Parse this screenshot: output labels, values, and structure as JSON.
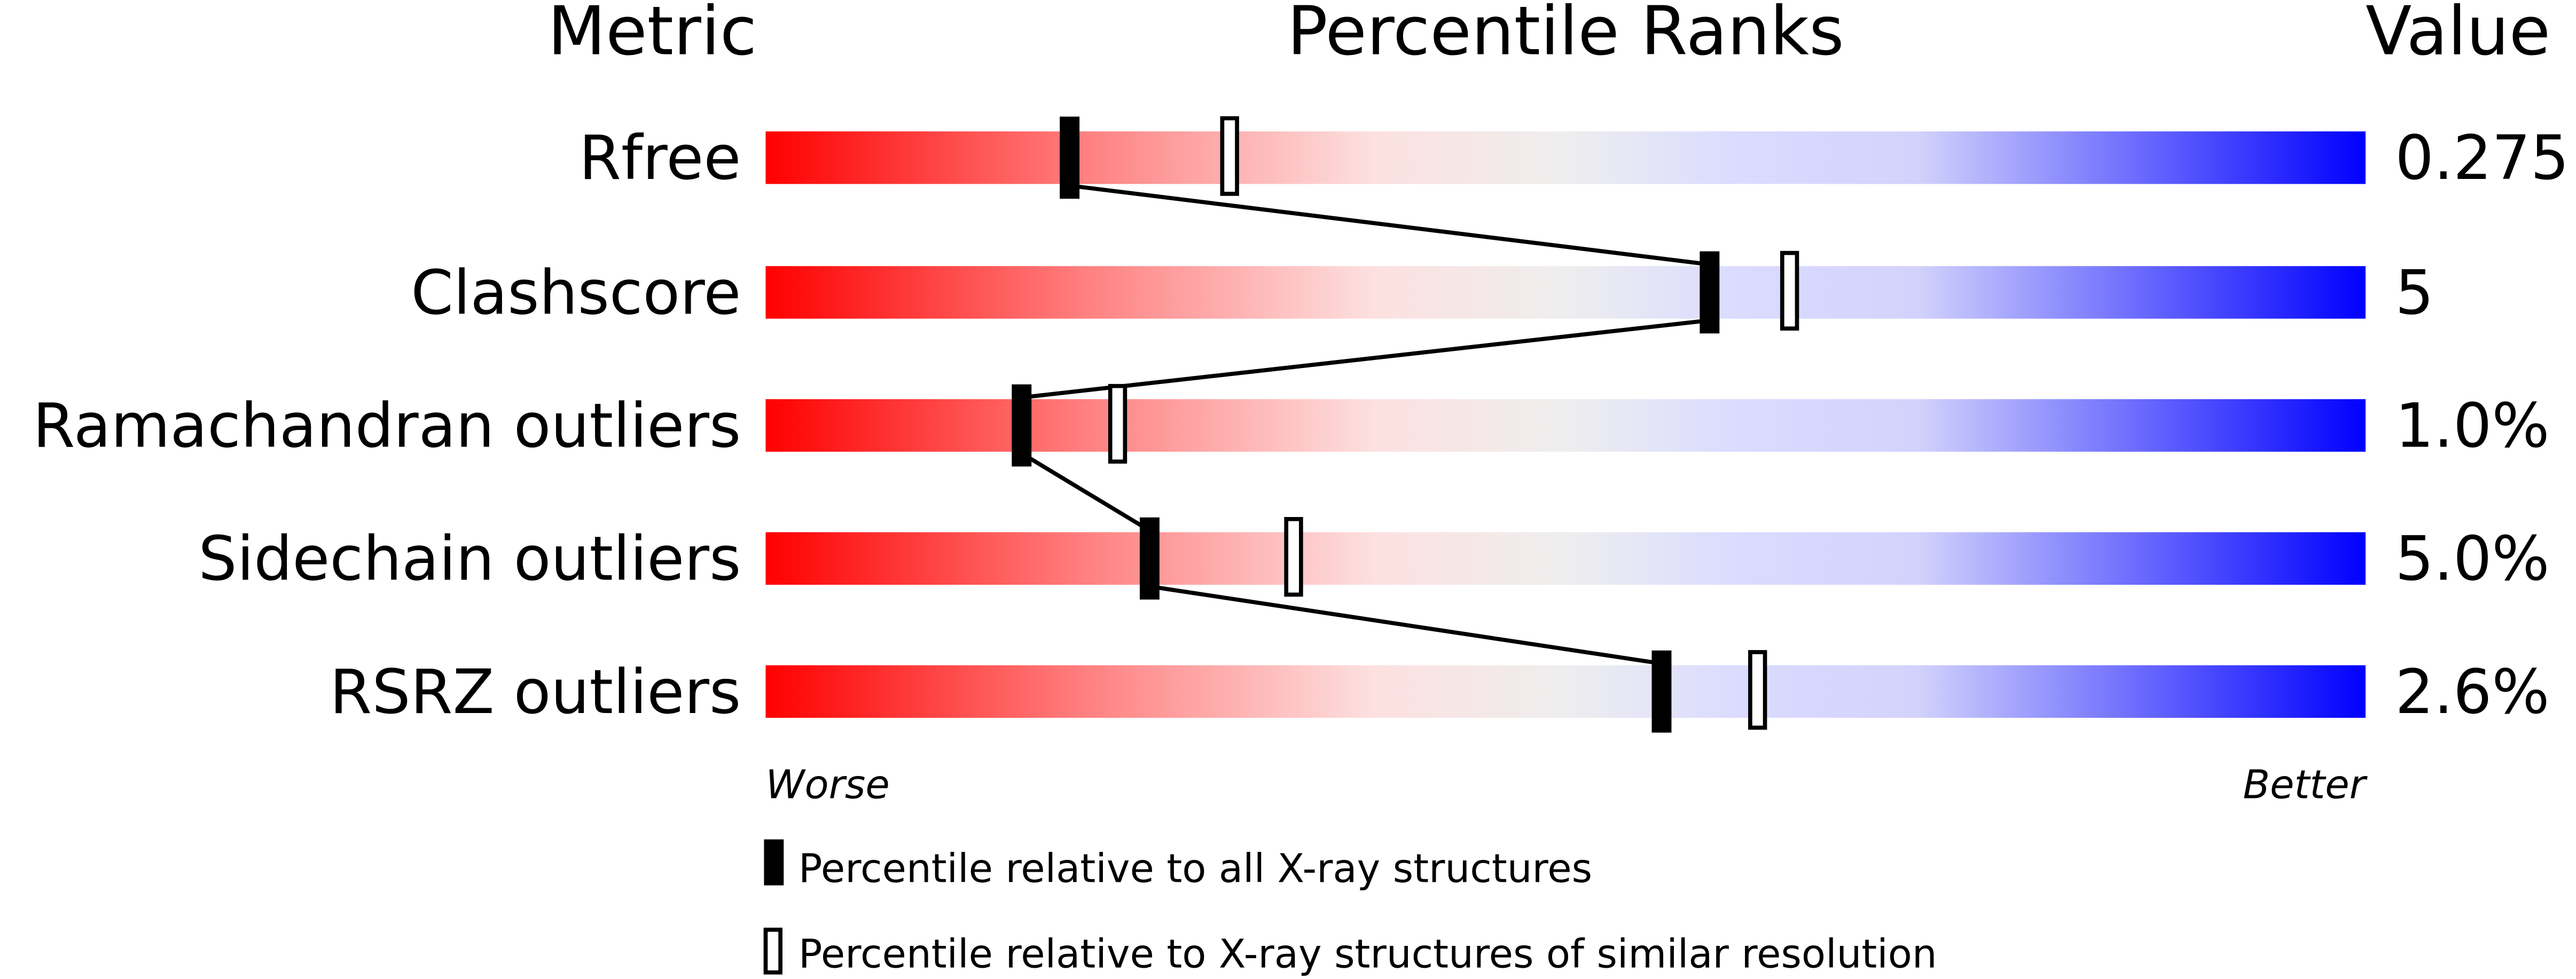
{
  "chart_data": {
    "type": "percentile-slider",
    "headers": {
      "metric": "Metric",
      "percentile": "Percentile Ranks",
      "value": "Value"
    },
    "axis": {
      "left": "Worse",
      "right": "Better"
    },
    "xlim": [
      0,
      100
    ],
    "colors": {
      "worse": "#ff0000",
      "middle": "#eeeeee",
      "better": "#0000ff"
    },
    "rows": [
      {
        "metric": "Rfree",
        "value": "0.275",
        "percentile_all": 19,
        "percentile_similar": 29
      },
      {
        "metric": "Clashscore",
        "value": "5",
        "percentile_all": 59,
        "percentile_similar": 64
      },
      {
        "metric": "Ramachandran outliers",
        "value": "1.0%",
        "percentile_all": 16,
        "percentile_similar": 22
      },
      {
        "metric": "Sidechain outliers",
        "value": "5.0%",
        "percentile_all": 24,
        "percentile_similar": 33
      },
      {
        "metric": "RSRZ outliers",
        "value": "2.6%",
        "percentile_all": 56,
        "percentile_similar": 62
      }
    ],
    "legend": [
      {
        "marker": "filled",
        "label": "Percentile relative to all X-ray structures"
      },
      {
        "marker": "open",
        "label": "Percentile relative to X-ray structures of similar resolution"
      }
    ]
  }
}
